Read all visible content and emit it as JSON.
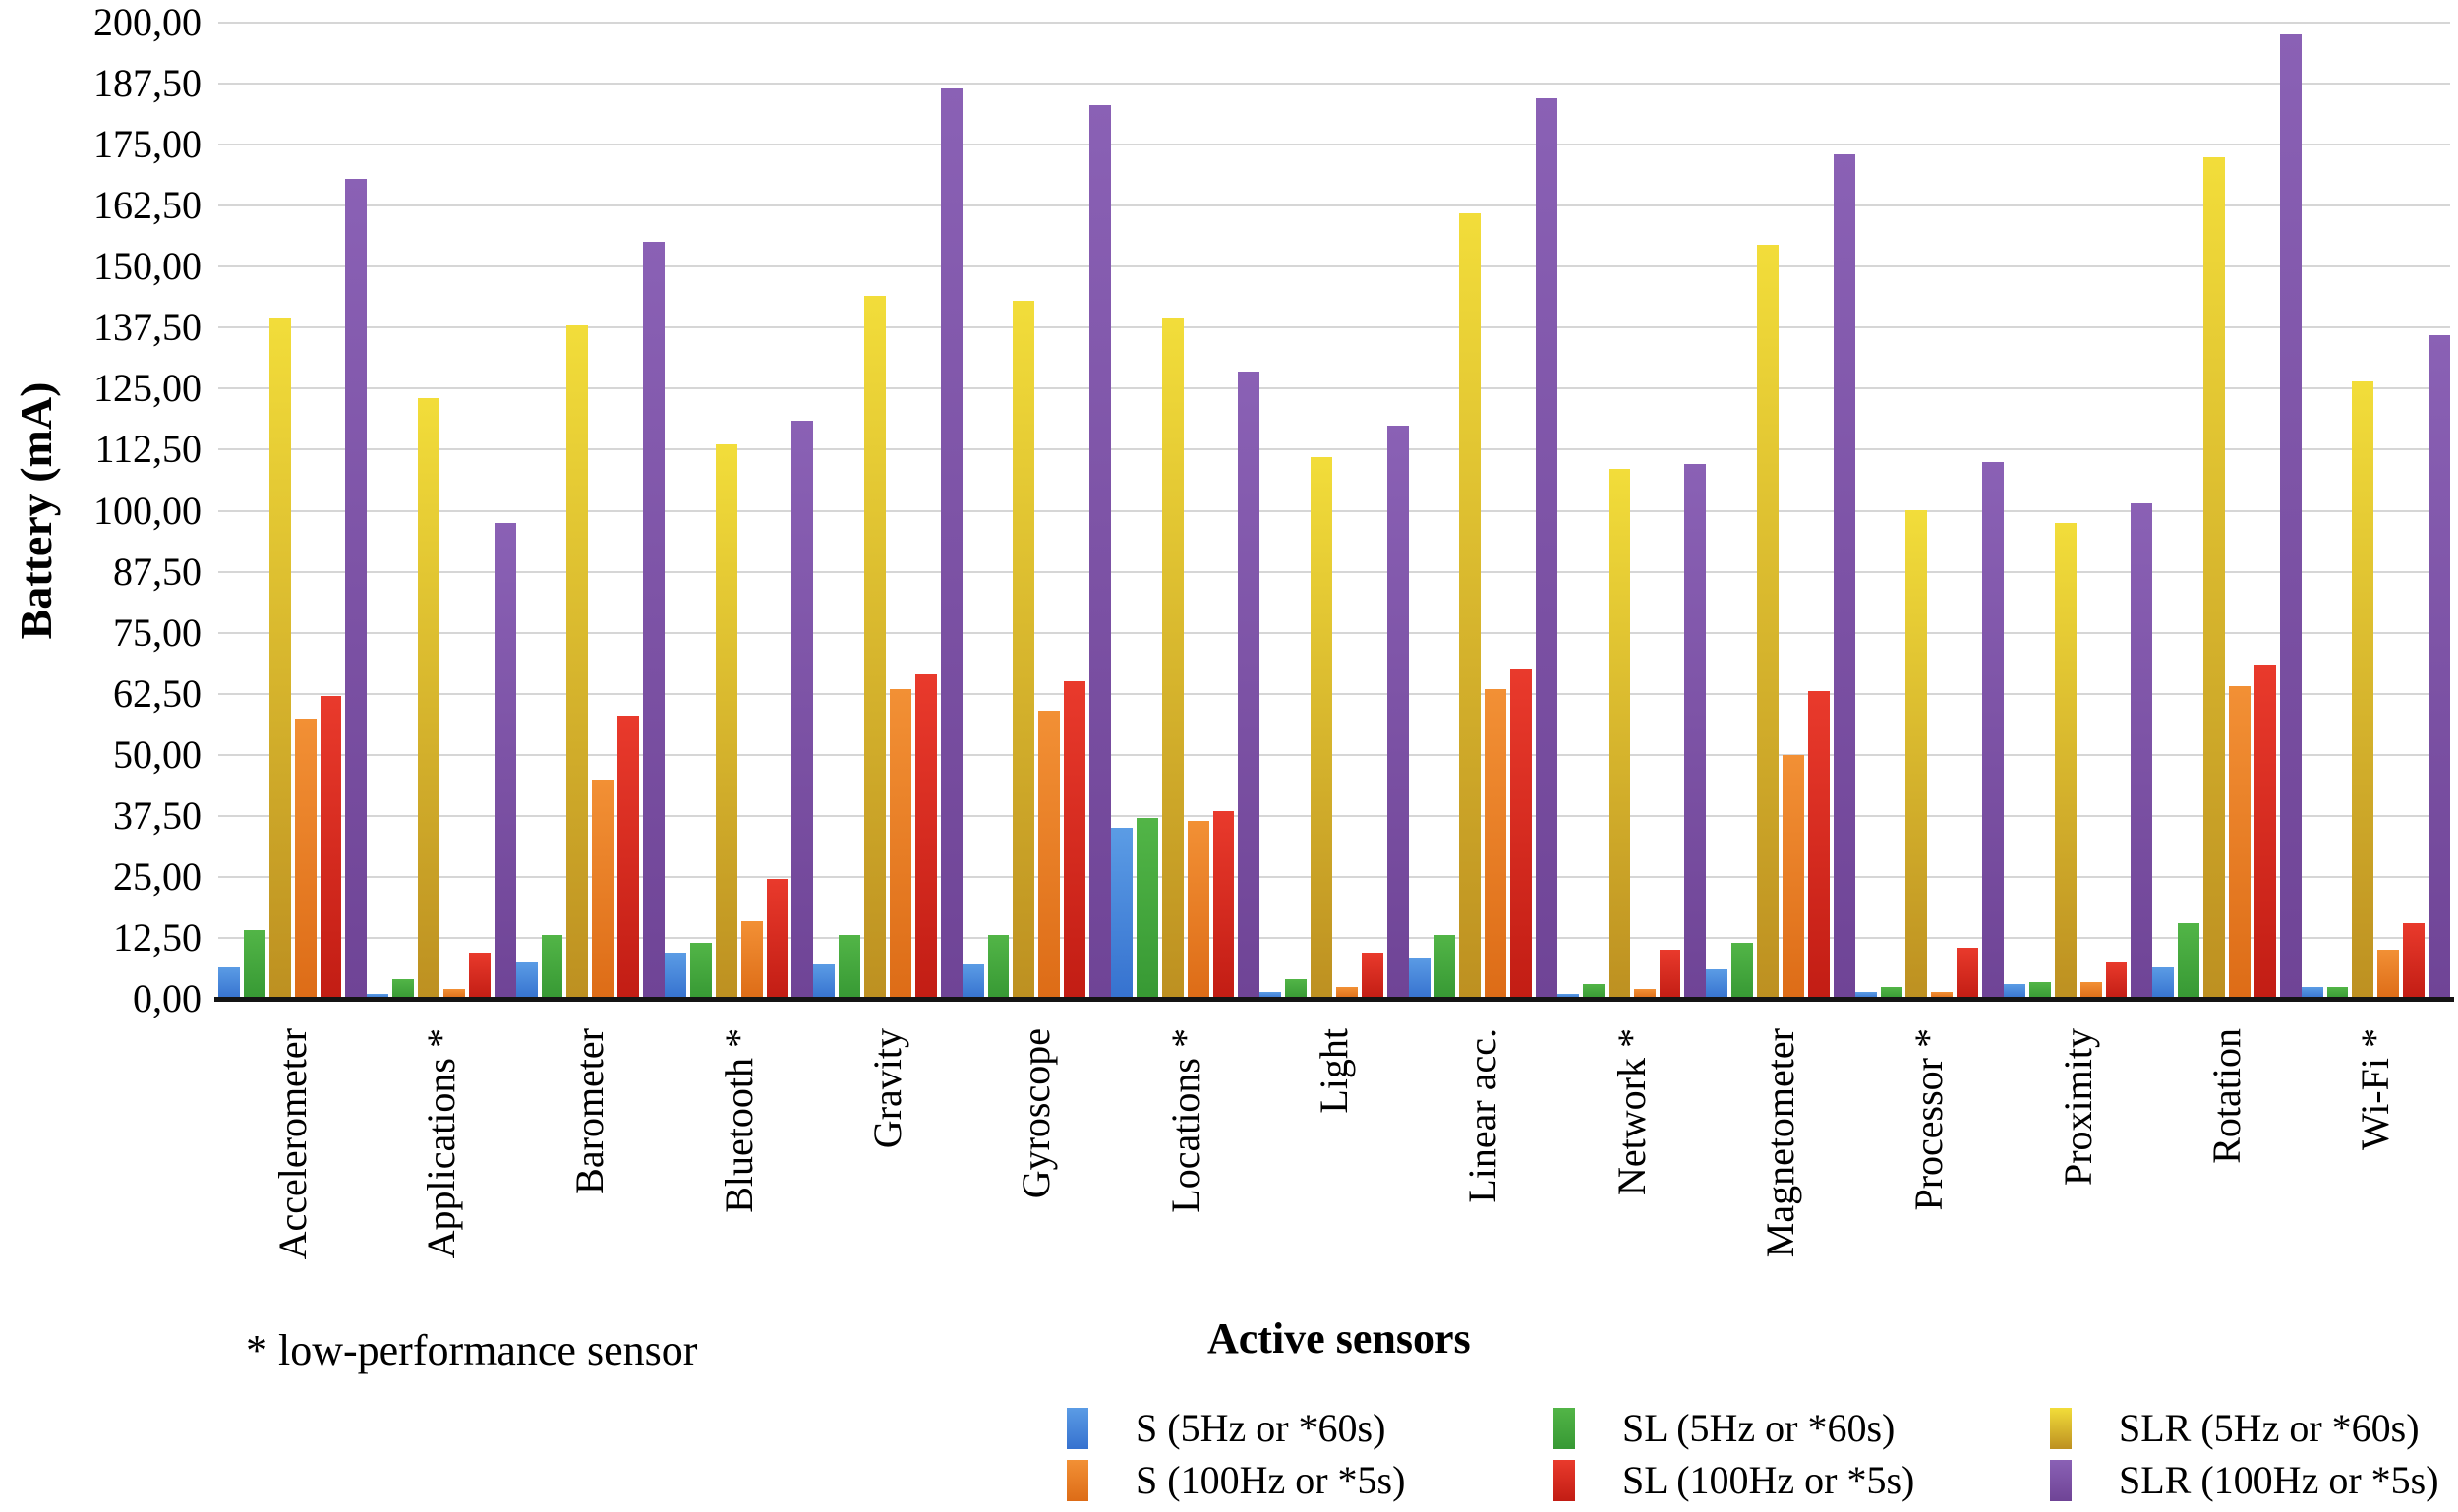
{
  "figure": {
    "footnote": "* low-performance sensor"
  },
  "chart_data": {
    "type": "bar",
    "title": "",
    "xlabel": "Active sensors",
    "ylabel": "Battery (mA)",
    "ylim": [
      0,
      200
    ],
    "ytick_step": 12.5,
    "grid": true,
    "legend_position": "bottom-right",
    "y_tick_labels": [
      "200,00",
      "187,50",
      "175,00",
      "162,50",
      "150,00",
      "137,50",
      "125,00",
      "112,50",
      "100,00",
      "87,50",
      "75,00",
      "62,50",
      "50,00",
      "37,50",
      "25,00",
      "12,50",
      "0,00"
    ],
    "categories": [
      "Accelerometer",
      "Applications *",
      "Barometer",
      "Bluetooth *",
      "Gravity",
      "Gyroscope",
      "Locations *",
      "Light",
      "Linear acc.",
      "Network *",
      "Magnetometer",
      "Processor *",
      "Proximity",
      "Rotation",
      "Wi-Fi *"
    ],
    "series": [
      {
        "name": "S (5Hz or *60s)",
        "color_top": "#5b9ce5",
        "color_bottom": "#3672cf",
        "values": [
          6.5,
          1,
          7.5,
          9.5,
          7,
          7,
          35,
          1.5,
          8.5,
          1,
          6,
          1.5,
          3,
          6.5,
          2.5
        ]
      },
      {
        "name": "SL (5Hz or *60s)",
        "color_top": "#52b547",
        "color_bottom": "#379934",
        "values": [
          14,
          4,
          13,
          11.5,
          13,
          13,
          37,
          4,
          13,
          3,
          11.5,
          2.5,
          3.5,
          15.5,
          2.5
        ]
      },
      {
        "name": "SLR (5Hz or *60s)",
        "color_top": "#f2dd3a",
        "color_bottom": "#bd9021",
        "values": [
          139.5,
          123,
          138,
          113.5,
          144,
          143,
          139.5,
          111,
          161,
          108.5,
          154.5,
          100,
          97.5,
          172.5,
          126.5
        ]
      },
      {
        "name": "S (100Hz or *5s)",
        "color_top": "#f29035",
        "color_bottom": "#dd6c17",
        "values": [
          57.5,
          2,
          45,
          16,
          63.5,
          59,
          36.5,
          2.5,
          63.5,
          2,
          50,
          1.5,
          3.5,
          64,
          10
        ]
      },
      {
        "name": "SL (100Hz or *5s)",
        "color_top": "#e93a2c",
        "color_bottom": "#c21d14",
        "values": [
          62,
          9.5,
          58,
          24.5,
          66.5,
          65,
          38.5,
          9.5,
          67.5,
          10,
          63,
          10.5,
          7.5,
          68.5,
          15.5
        ]
      },
      {
        "name": "SLR (100Hz or *5s)",
        "color_top": "#8a61b5",
        "color_bottom": "#6f4496",
        "values": [
          168,
          97.5,
          155,
          118.5,
          186.5,
          183,
          128.5,
          117.5,
          184.5,
          109.5,
          173,
          110,
          101.5,
          197.5,
          136
        ]
      }
    ],
    "legend_columns": [
      [
        0,
        3
      ],
      [
        1,
        4
      ],
      [
        2,
        5
      ]
    ]
  }
}
